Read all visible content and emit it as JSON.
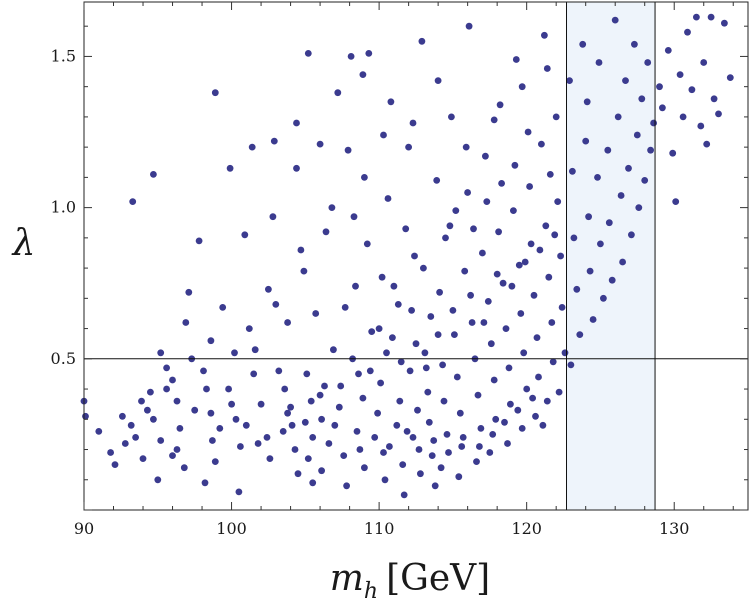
{
  "chart_data": {
    "type": "scatter",
    "title": "",
    "xlabel": "m_h [GeV]",
    "xlabel_main": "m",
    "xlabel_sub": "h",
    "xlabel_unit": "[GeV]",
    "ylabel": "λ",
    "xlim": [
      90,
      135
    ],
    "ylim": [
      0,
      1.68
    ],
    "x_ticks": [
      90,
      100,
      110,
      120,
      130
    ],
    "x_tick_labels": [
      "90",
      "100",
      "110",
      "120",
      "130"
    ],
    "y_ticks": [
      0.5,
      1.0,
      1.5
    ],
    "y_tick_labels": [
      "0.5",
      "1.0",
      "1.5"
    ],
    "grid": false,
    "marker_color": "#3b3b8f",
    "shaded_band": {
      "x_from": 122.7,
      "x_to": 128.7,
      "color": "#eef4fb"
    },
    "reference_lines": {
      "vertical": [
        122.7,
        128.7
      ],
      "horizontal": [
        0.5
      ]
    },
    "series": [
      {
        "points": [
          [
            90.0,
            0.36
          ],
          [
            90.1,
            0.31
          ],
          [
            91.0,
            0.26
          ],
          [
            91.8,
            0.19
          ],
          [
            92.1,
            0.15
          ],
          [
            93.2,
            0.28
          ],
          [
            93.5,
            0.24
          ],
          [
            93.3,
            1.02
          ],
          [
            94.7,
            1.11
          ],
          [
            94.5,
            0.39
          ],
          [
            94.3,
            0.33
          ],
          [
            94.7,
            0.3
          ],
          [
            95.2,
            0.23
          ],
          [
            95.0,
            0.1
          ],
          [
            95.2,
            0.52
          ],
          [
            95.6,
            0.47
          ],
          [
            96.0,
            0.43
          ],
          [
            96.3,
            0.36
          ],
          [
            96.5,
            0.27
          ],
          [
            96.3,
            0.2
          ],
          [
            96.8,
            0.14
          ],
          [
            96.9,
            0.62
          ],
          [
            97.1,
            0.72
          ],
          [
            97.8,
            0.89
          ],
          [
            98.1,
            0.46
          ],
          [
            98.3,
            0.4
          ],
          [
            98.6,
            0.32
          ],
          [
            98.7,
            0.23
          ],
          [
            98.2,
            0.09
          ],
          [
            98.9,
            0.16
          ],
          [
            98.9,
            1.38
          ],
          [
            99.4,
            0.67
          ],
          [
            99.9,
            1.13
          ],
          [
            99.8,
            0.4
          ],
          [
            100.3,
            0.3
          ],
          [
            100.6,
            0.21
          ],
          [
            100.5,
            0.06
          ],
          [
            100.9,
            0.91
          ],
          [
            101.2,
            0.6
          ],
          [
            101.6,
            0.53
          ],
          [
            101.4,
            1.2
          ],
          [
            102.0,
            0.35
          ],
          [
            102.4,
            0.24
          ],
          [
            102.6,
            0.17
          ],
          [
            102.5,
            0.73
          ],
          [
            102.8,
            0.97
          ],
          [
            102.9,
            1.22
          ],
          [
            103.2,
            0.46
          ],
          [
            103.6,
            0.4
          ],
          [
            103.8,
            0.32
          ],
          [
            104.1,
            0.28
          ],
          [
            103.8,
            0.62
          ],
          [
            104.3,
            0.2
          ],
          [
            104.5,
            0.12
          ],
          [
            104.4,
            1.13
          ],
          [
            104.7,
            0.86
          ],
          [
            104.4,
            1.28
          ],
          [
            105.1,
            0.45
          ],
          [
            105.4,
            0.36
          ],
          [
            105.5,
            0.24
          ],
          [
            105.2,
            0.17
          ],
          [
            105.5,
            0.09
          ],
          [
            105.2,
            1.51
          ],
          [
            105.7,
            0.65
          ],
          [
            106.1,
            0.3
          ],
          [
            106.3,
            0.41
          ],
          [
            106.6,
            0.22
          ],
          [
            106.1,
            0.13
          ],
          [
            106.4,
            0.92
          ],
          [
            106.8,
            1.0
          ],
          [
            106.9,
            0.53
          ],
          [
            107.3,
            0.34
          ],
          [
            107.0,
            0.28
          ],
          [
            107.6,
            0.18
          ],
          [
            107.8,
            0.08
          ],
          [
            107.7,
            0.67
          ],
          [
            107.9,
            1.19
          ],
          [
            108.1,
            1.5
          ],
          [
            108.3,
            0.97
          ],
          [
            108.4,
            0.74
          ],
          [
            108.6,
            0.45
          ],
          [
            108.9,
            0.37
          ],
          [
            108.5,
            0.26
          ],
          [
            109.0,
            0.14
          ],
          [
            109.2,
            0.88
          ],
          [
            109.0,
            1.1
          ],
          [
            109.3,
            1.51
          ],
          [
            109.5,
            0.59
          ],
          [
            109.9,
            0.32
          ],
          [
            110.1,
            0.42
          ],
          [
            110.3,
            0.19
          ],
          [
            110.4,
            0.1
          ],
          [
            110.2,
            0.77
          ],
          [
            110.6,
            1.03
          ],
          [
            110.8,
            1.35
          ],
          [
            110.9,
            0.57
          ],
          [
            111.2,
            0.28
          ],
          [
            111.4,
            0.36
          ],
          [
            111.6,
            0.15
          ],
          [
            111.7,
            0.05
          ],
          [
            111.3,
            0.68
          ],
          [
            111.8,
            0.93
          ],
          [
            112.0,
            1.2
          ],
          [
            112.1,
            0.46
          ],
          [
            112.3,
            0.24
          ],
          [
            112.6,
            0.33
          ],
          [
            112.8,
            0.12
          ],
          [
            112.4,
            0.84
          ],
          [
            112.9,
            1.55
          ],
          [
            113.1,
            0.52
          ],
          [
            113.3,
            0.39
          ],
          [
            113.4,
            0.29
          ],
          [
            113.6,
            0.18
          ],
          [
            113.8,
            0.08
          ],
          [
            113.5,
            0.64
          ],
          [
            113.9,
            1.09
          ],
          [
            114.1,
            0.72
          ],
          [
            114.3,
            0.48
          ],
          [
            114.4,
            0.36
          ],
          [
            114.6,
            0.25
          ],
          [
            114.2,
            0.14
          ],
          [
            114.8,
            0.94
          ],
          [
            114.9,
            1.3
          ],
          [
            115.1,
            0.58
          ],
          [
            115.3,
            0.44
          ],
          [
            115.5,
            0.32
          ],
          [
            115.6,
            0.21
          ],
          [
            115.4,
            0.11
          ],
          [
            115.8,
            0.79
          ],
          [
            116.0,
            1.05
          ],
          [
            116.1,
            1.6
          ],
          [
            116.3,
            0.62
          ],
          [
            116.5,
            0.5
          ],
          [
            116.7,
            0.38
          ],
          [
            116.9,
            0.27
          ],
          [
            116.6,
            0.16
          ],
          [
            117.0,
            0.85
          ],
          [
            117.2,
            1.17
          ],
          [
            117.4,
            0.69
          ],
          [
            117.6,
            0.55
          ],
          [
            117.8,
            0.43
          ],
          [
            117.9,
            0.3
          ],
          [
            117.5,
            0.19
          ],
          [
            118.1,
            0.92
          ],
          [
            118.2,
            1.34
          ],
          [
            118.4,
            0.75
          ],
          [
            118.6,
            0.6
          ],
          [
            118.8,
            0.47
          ],
          [
            118.9,
            0.35
          ],
          [
            118.7,
            0.22
          ],
          [
            119.1,
            0.99
          ],
          [
            119.3,
            1.49
          ],
          [
            119.5,
            0.81
          ],
          [
            119.6,
            0.65
          ],
          [
            119.8,
            0.52
          ],
          [
            120.0,
            0.4
          ],
          [
            119.7,
            0.27
          ],
          [
            120.2,
            1.07
          ],
          [
            120.3,
            0.88
          ],
          [
            120.5,
            0.71
          ],
          [
            120.7,
            0.57
          ],
          [
            120.8,
            0.44
          ],
          [
            120.6,
            0.31
          ],
          [
            121.0,
            1.21
          ],
          [
            121.2,
            1.57
          ],
          [
            121.3,
            0.94
          ],
          [
            121.5,
            0.77
          ],
          [
            121.7,
            0.62
          ],
          [
            121.8,
            0.49
          ],
          [
            121.4,
            0.36
          ],
          [
            122.0,
            1.3
          ],
          [
            122.1,
            1.02
          ],
          [
            122.3,
            0.84
          ],
          [
            122.4,
            0.67
          ],
          [
            122.6,
            0.52
          ],
          [
            122.2,
            0.39
          ],
          [
            122.9,
            1.42
          ],
          [
            123.1,
            1.12
          ],
          [
            123.2,
            0.9
          ],
          [
            123.4,
            0.73
          ],
          [
            123.6,
            0.58
          ],
          [
            123.0,
            0.48
          ],
          [
            123.8,
            1.54
          ],
          [
            124.0,
            1.22
          ],
          [
            124.2,
            0.97
          ],
          [
            124.3,
            0.79
          ],
          [
            124.5,
            0.63
          ],
          [
            124.1,
            1.35
          ],
          [
            124.8,
            1.1
          ],
          [
            125.0,
            0.88
          ],
          [
            125.2,
            0.7
          ],
          [
            124.9,
            1.48
          ],
          [
            125.5,
            1.19
          ],
          [
            125.6,
            0.95
          ],
          [
            125.8,
            0.76
          ],
          [
            126.0,
            1.62
          ],
          [
            126.2,
            1.3
          ],
          [
            126.4,
            1.04
          ],
          [
            126.5,
            0.82
          ],
          [
            126.7,
            1.42
          ],
          [
            126.9,
            1.13
          ],
          [
            127.1,
            0.91
          ],
          [
            127.3,
            1.54
          ],
          [
            127.5,
            1.24
          ],
          [
            127.6,
            1.0
          ],
          [
            127.8,
            1.36
          ],
          [
            128.0,
            1.09
          ],
          [
            128.2,
            1.48
          ],
          [
            128.4,
            1.19
          ],
          [
            128.6,
            1.28
          ],
          [
            129.0,
            1.4
          ],
          [
            129.2,
            1.33
          ],
          [
            129.6,
            1.52
          ],
          [
            129.9,
            1.18
          ],
          [
            130.1,
            1.02
          ],
          [
            130.4,
            1.44
          ],
          [
            130.6,
            1.3
          ],
          [
            130.9,
            1.58
          ],
          [
            131.2,
            1.39
          ],
          [
            131.5,
            1.63
          ],
          [
            131.8,
            1.27
          ],
          [
            132.0,
            1.48
          ],
          [
            132.2,
            1.21
          ],
          [
            132.5,
            1.63
          ],
          [
            132.7,
            1.36
          ],
          [
            133.0,
            1.31
          ],
          [
            133.4,
            1.61
          ],
          [
            133.8,
            1.43
          ],
          [
            108.7,
            0.2
          ],
          [
            109.7,
            0.24
          ],
          [
            110.7,
            0.21
          ],
          [
            111.9,
            0.26
          ],
          [
            112.7,
            0.2
          ],
          [
            113.7,
            0.23
          ],
          [
            114.7,
            0.19
          ],
          [
            115.7,
            0.24
          ],
          [
            116.8,
            0.21
          ],
          [
            117.7,
            0.25
          ],
          [
            118.5,
            0.29
          ],
          [
            119.4,
            0.33
          ],
          [
            120.4,
            0.37
          ],
          [
            121.1,
            0.28
          ],
          [
            107.4,
            0.41
          ],
          [
            108.2,
            0.5
          ],
          [
            109.4,
            0.46
          ],
          [
            110.5,
            0.52
          ],
          [
            111.5,
            0.49
          ],
          [
            112.5,
            0.55
          ],
          [
            113.2,
            0.47
          ],
          [
            114.0,
            0.58
          ],
          [
            115.0,
            0.66
          ],
          [
            116.2,
            0.71
          ],
          [
            117.1,
            0.62
          ],
          [
            118.0,
            0.78
          ],
          [
            119.0,
            0.74
          ],
          [
            119.9,
            0.82
          ],
          [
            120.9,
            0.86
          ],
          [
            121.9,
            0.91
          ],
          [
            103.5,
            0.26
          ],
          [
            104.0,
            0.34
          ],
          [
            105.0,
            0.29
          ],
          [
            106.0,
            0.38
          ],
          [
            101.0,
            0.28
          ],
          [
            101.8,
            0.22
          ],
          [
            100.0,
            0.35
          ],
          [
            99.2,
            0.27
          ],
          [
            97.5,
            0.33
          ],
          [
            96.0,
            0.18
          ],
          [
            92.8,
            0.22
          ],
          [
            94.0,
            0.17
          ],
          [
            110.0,
            0.6
          ],
          [
            111.0,
            0.74
          ],
          [
            112.2,
            0.66
          ],
          [
            113.0,
            0.8
          ],
          [
            114.5,
            0.9
          ],
          [
            115.2,
            0.99
          ],
          [
            116.4,
            0.93
          ],
          [
            117.3,
            1.02
          ],
          [
            118.3,
            1.08
          ],
          [
            119.2,
            1.14
          ],
          [
            120.1,
            1.25
          ],
          [
            121.6,
            1.11
          ],
          [
            115.9,
            1.2
          ],
          [
            117.8,
            1.29
          ],
          [
            119.7,
            1.4
          ],
          [
            121.4,
            1.46
          ],
          [
            114.0,
            1.42
          ],
          [
            112.3,
            1.28
          ],
          [
            110.3,
            1.24
          ],
          [
            108.9,
            1.44
          ],
          [
            107.2,
            1.38
          ],
          [
            106.0,
            1.21
          ],
          [
            104.9,
            0.79
          ],
          [
            103.0,
            0.68
          ],
          [
            101.5,
            0.45
          ],
          [
            100.2,
            0.52
          ],
          [
            98.6,
            0.56
          ],
          [
            97.3,
            0.5
          ],
          [
            95.6,
            0.4
          ],
          [
            93.9,
            0.36
          ],
          [
            92.6,
            0.31
          ]
        ]
      }
    ]
  }
}
